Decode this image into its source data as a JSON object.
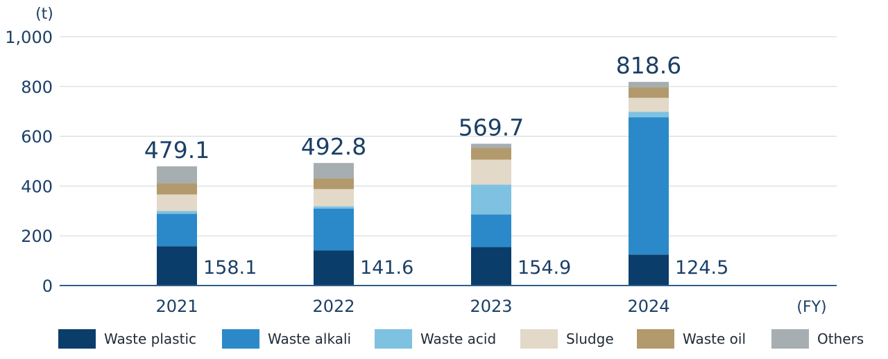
{
  "chart_data": {
    "type": "bar",
    "stacked": true,
    "categories": [
      "2021",
      "2022",
      "2023",
      "2024"
    ],
    "series": [
      {
        "name": "Waste plastic",
        "color": "#0b3d6b",
        "values": [
          158.1,
          141.6,
          154.9,
          124.5
        ]
      },
      {
        "name": "Waste alkali",
        "color": "#2b89c9",
        "values": [
          130,
          168,
          131,
          552
        ]
      },
      {
        "name": "Waste acid",
        "color": "#7ec1e0",
        "values": [
          12,
          9,
          120,
          22
        ]
      },
      {
        "name": "Sludge",
        "color": "#e3d9c8",
        "values": [
          66,
          69,
          100,
          56
        ]
      },
      {
        "name": "Waste oil",
        "color": "#b29a6c",
        "values": [
          45,
          43,
          47,
          42
        ]
      },
      {
        "name": "Others",
        "color": "#a7aeb2",
        "values": [
          68,
          62,
          17,
          22
        ]
      }
    ],
    "totals": [
      "479.1",
      "492.8",
      "569.7",
      "818.6"
    ],
    "base_labels": [
      "158.1",
      "141.6",
      "154.9",
      "124.5"
    ],
    "y_ticks": [
      "0",
      "200",
      "400",
      "600",
      "800",
      "1,000"
    ],
    "ylim": [
      0,
      1000
    ],
    "ylabel": "(t)",
    "xlabel": "(FY)",
    "grid": true,
    "legend_position": "bottom"
  }
}
